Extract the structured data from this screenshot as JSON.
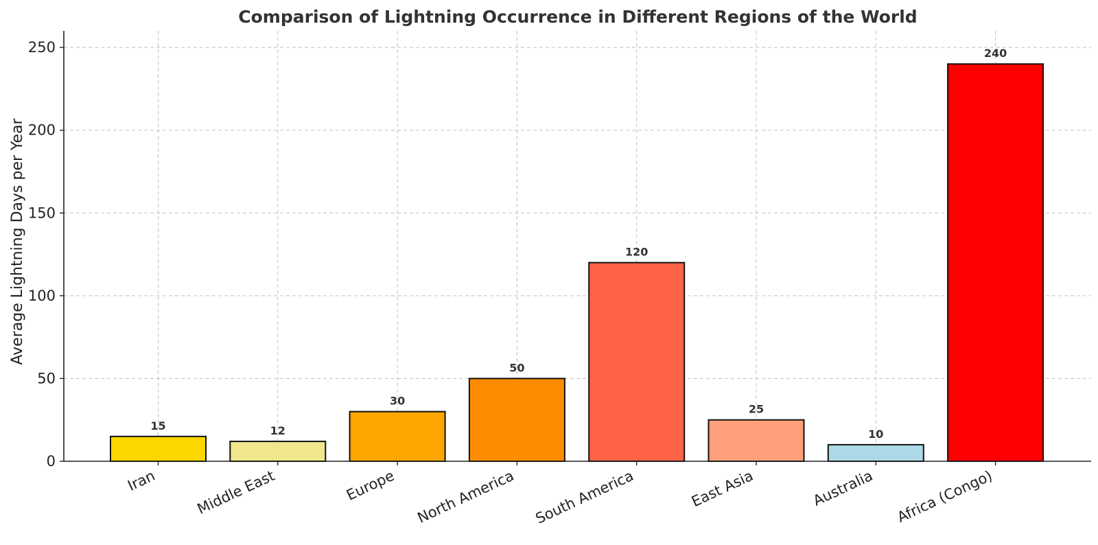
{
  "chart_data": {
    "type": "bar",
    "title": "Comparison of Lightning Occurrence in Different Regions of the World",
    "xlabel": "",
    "ylabel": "Average Lightning Days per Year",
    "categories": [
      "Iran",
      "Middle East",
      "Europe",
      "North America",
      "South America",
      "East Asia",
      "Australia",
      "Africa (Congo)"
    ],
    "values": [
      15,
      12,
      30,
      50,
      120,
      25,
      10,
      240
    ],
    "data_labels": [
      "15",
      "12",
      "30",
      "50",
      "120",
      "25",
      "10",
      "240"
    ],
    "colors": [
      "#FFD700",
      "#F0E68C",
      "#FFA500",
      "#FF8C00",
      "#FF6347",
      "#FFA07A",
      "#ADD8E6",
      "#FF0000"
    ],
    "ylim": [
      0,
      260
    ],
    "yticks": [
      0,
      50,
      100,
      150,
      200,
      250
    ],
    "grid": true,
    "legend": "none"
  }
}
